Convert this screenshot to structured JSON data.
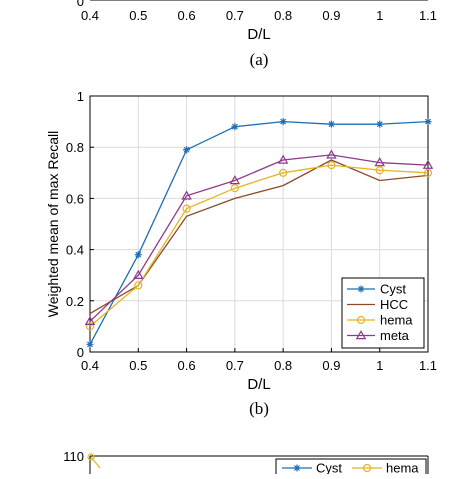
{
  "top_fragment": {
    "x_ticks": [
      "0.4",
      "0.5",
      "0.6",
      "0.7",
      "0.8",
      "0.9",
      "1",
      "1.1"
    ],
    "y_tick": "0",
    "xlabel": "D/L",
    "caption": "(a)"
  },
  "chart_data": [
    {
      "type": "line",
      "caption": "(b)",
      "title": "",
      "xlabel": "D/L",
      "ylabel": "Weighted mean of max Recall",
      "xlim": [
        0.4,
        1.1
      ],
      "ylim": [
        0,
        1
      ],
      "x_ticks": [
        "0.4",
        "0.5",
        "0.6",
        "0.7",
        "0.8",
        "0.9",
        "1",
        "1.1"
      ],
      "y_ticks": [
        "0",
        "0.2",
        "0.4",
        "0.6",
        "0.8",
        "1"
      ],
      "grid": true,
      "legend_position": "bottom-right",
      "x": [
        0.4,
        0.5,
        0.6,
        0.7,
        0.8,
        0.9,
        1.0,
        1.1
      ],
      "series": [
        {
          "name": "Cyst",
          "color": "#1f6fb4",
          "marker": "star",
          "values": [
            0.03,
            0.38,
            0.79,
            0.88,
            0.9,
            0.89,
            0.89,
            0.9
          ]
        },
        {
          "name": "HCC",
          "color": "#8c4a2a",
          "marker": "none",
          "values": [
            0.15,
            0.26,
            0.53,
            0.6,
            0.65,
            0.75,
            0.67,
            0.69
          ]
        },
        {
          "name": "hema",
          "color": "#e6b422",
          "marker": "circle",
          "values": [
            0.1,
            0.26,
            0.56,
            0.64,
            0.7,
            0.73,
            0.71,
            0.7
          ]
        },
        {
          "name": "meta",
          "color": "#8e3a8c",
          "marker": "triangle",
          "values": [
            0.12,
            0.3,
            0.61,
            0.67,
            0.75,
            0.77,
            0.74,
            0.73
          ]
        }
      ]
    },
    {
      "type": "line",
      "title": "",
      "y_tick_visible": "110",
      "legend_entries": [
        "Cyst",
        "hema"
      ],
      "series": [
        {
          "name": "Cyst",
          "color": "#1f6fb4",
          "marker": "star"
        },
        {
          "name": "hema",
          "color": "#e6b422",
          "marker": "circle"
        }
      ]
    }
  ]
}
